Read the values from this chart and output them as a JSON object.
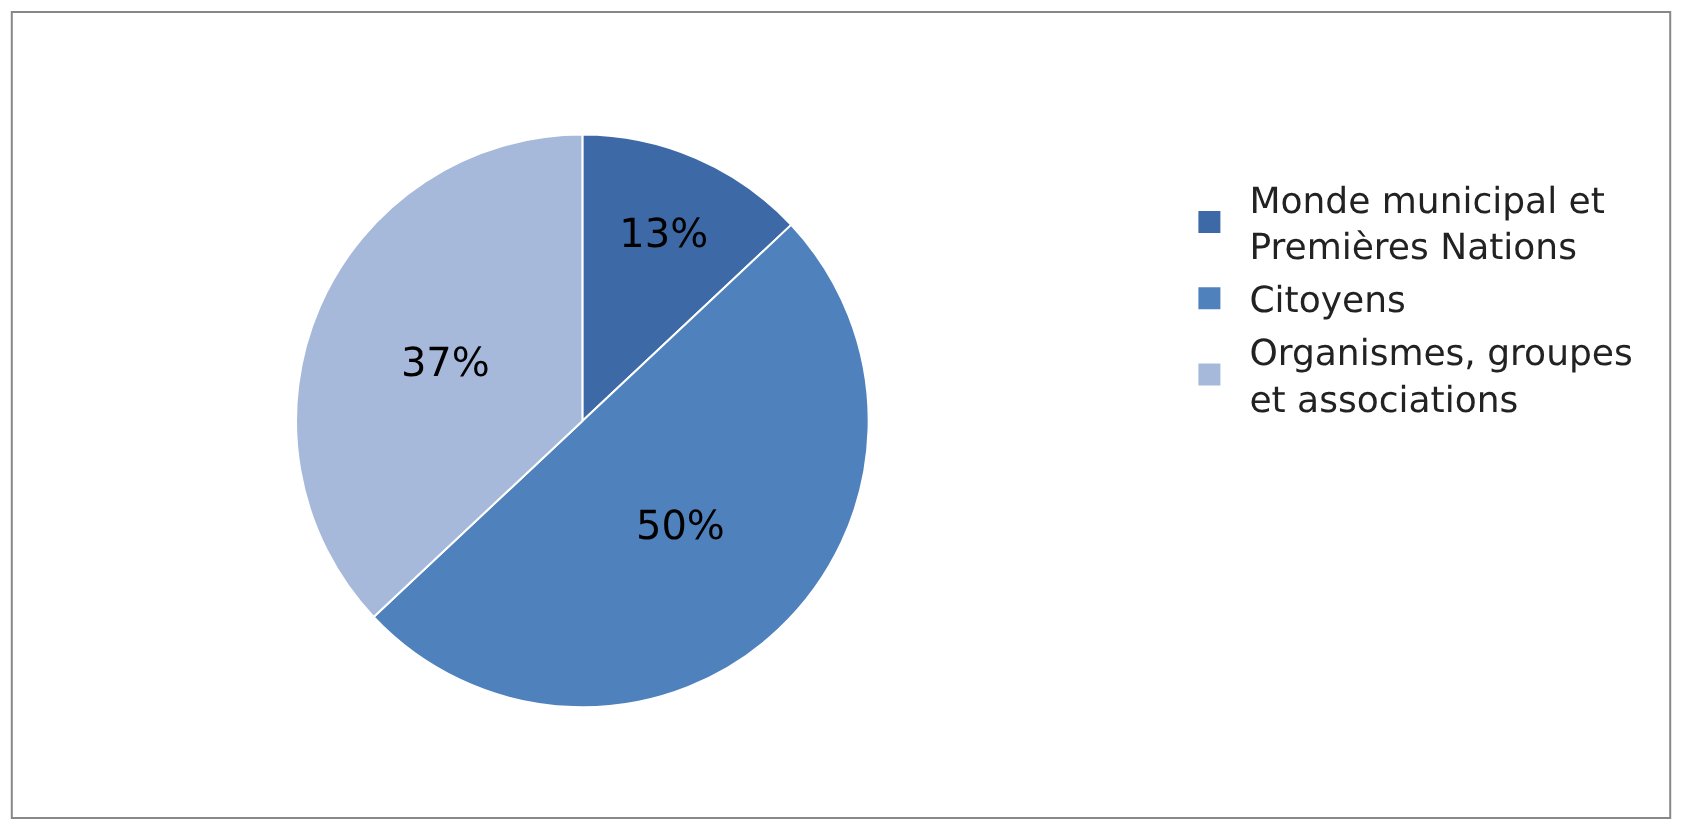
{
  "chart_data": {
    "type": "pie",
    "categories": [
      "Monde municipal et Premières Nations",
      "Citoyens",
      "Organismes, groupes et associations"
    ],
    "values": [
      13,
      50,
      37
    ],
    "value_labels": [
      "13%",
      "50%",
      "37%"
    ],
    "colors": [
      "#3d6aa6",
      "#4f81bd",
      "#a7b9da"
    ],
    "legend": "right"
  }
}
